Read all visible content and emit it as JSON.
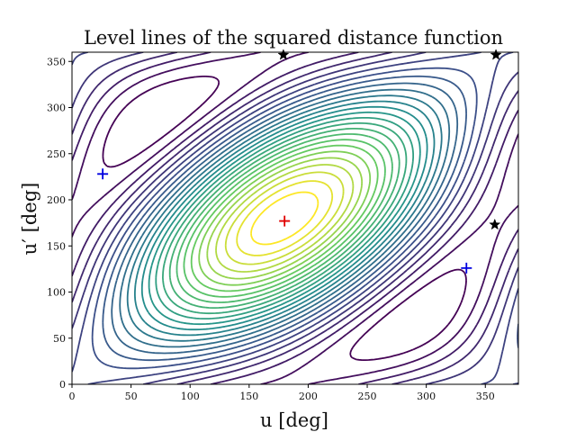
{
  "chart_data": {
    "type": "contour",
    "title": "Level lines of the squared distance function",
    "xlabel": "u [deg]",
    "ylabel": "u′ [deg]",
    "xlim": [
      0,
      378
    ],
    "ylim": [
      0,
      360
    ],
    "xticks": [
      0,
      50,
      100,
      150,
      200,
      250,
      300,
      350
    ],
    "yticks": [
      0,
      50,
      100,
      150,
      200,
      250,
      300,
      350
    ],
    "grid": false,
    "colormap": [
      "#440154",
      "#3b528b",
      "#21918c",
      "#5ec962",
      "#fde725"
    ],
    "levels": 26,
    "markers": [
      {
        "name": "maximum",
        "symbol": "plus",
        "color": "#e00000",
        "x": 180,
        "y": 177
      },
      {
        "name": "minimum",
        "symbol": "plus",
        "color": "#0000e0",
        "x": 26,
        "y": 228
      },
      {
        "name": "minimum",
        "symbol": "plus",
        "color": "#0000e0",
        "x": 334,
        "y": 126
      },
      {
        "name": "saddle",
        "symbol": "star",
        "color": "#000000",
        "x": 179,
        "y": 357
      },
      {
        "name": "saddle",
        "symbol": "star",
        "color": "#000000",
        "x": 359,
        "y": 357
      },
      {
        "name": "saddle",
        "symbol": "star",
        "color": "#000000",
        "x": 358,
        "y": 173
      }
    ]
  }
}
